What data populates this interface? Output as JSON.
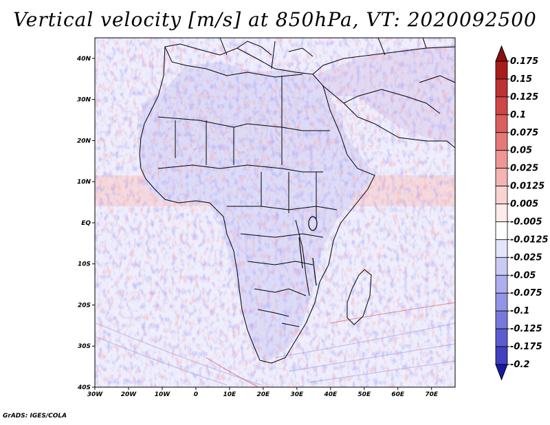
{
  "title": "Vertical velocity [m/s] at 850hPa, VT: 2020092500",
  "footer": "GrADS: IGES/COLA",
  "map": {
    "variable": "Vertical velocity",
    "units": "m/s",
    "level": "850hPa",
    "valid_time": "2020092500",
    "lon_range": [
      -30,
      77
    ],
    "lat_range": [
      -40,
      45
    ],
    "lat_ticks": [
      {
        "value": 40,
        "label": "40N"
      },
      {
        "value": 30,
        "label": "30N"
      },
      {
        "value": 20,
        "label": "20N"
      },
      {
        "value": 10,
        "label": "10N"
      },
      {
        "value": 0,
        "label": "EQ"
      },
      {
        "value": -10,
        "label": "10S"
      },
      {
        "value": -20,
        "label": "20S"
      },
      {
        "value": -30,
        "label": "30S"
      },
      {
        "value": -40,
        "label": "40S"
      }
    ],
    "lon_ticks": [
      {
        "value": -30,
        "label": "30W"
      },
      {
        "value": -20,
        "label": "20W"
      },
      {
        "value": -10,
        "label": "10W"
      },
      {
        "value": 0,
        "label": "0"
      },
      {
        "value": 10,
        "label": "10E"
      },
      {
        "value": 20,
        "label": "20E"
      },
      {
        "value": 30,
        "label": "30E"
      },
      {
        "value": 40,
        "label": "40E"
      },
      {
        "value": 50,
        "label": "50E"
      },
      {
        "value": 60,
        "label": "60E"
      },
      {
        "value": 70,
        "label": "70E"
      }
    ]
  },
  "colorbar": {
    "levels": [
      {
        "label": "0.175",
        "color": "#a81c1c"
      },
      {
        "label": "0.15",
        "color": "#bd3232"
      },
      {
        "label": "0.125",
        "color": "#cf4646"
      },
      {
        "label": "0.1",
        "color": "#db5e5e"
      },
      {
        "label": "0.075",
        "color": "#e57878"
      },
      {
        "label": "0.05",
        "color": "#ee9696"
      },
      {
        "label": "0.025",
        "color": "#f4b4b4"
      },
      {
        "label": "0.0125",
        "color": "#f9d2d2"
      },
      {
        "label": "0.005",
        "color": "#fdeaea"
      },
      {
        "label": "-0.005",
        "color": "#ffffff"
      },
      {
        "label": "-0.0125",
        "color": "#e4e4fb"
      },
      {
        "label": "-0.025",
        "color": "#cacaf5"
      },
      {
        "label": "-0.05",
        "color": "#aeaeee"
      },
      {
        "label": "-0.075",
        "color": "#9494e6"
      },
      {
        "label": "-0.1",
        "color": "#7878dc"
      },
      {
        "label": "-0.125",
        "color": "#5c5cd0"
      },
      {
        "label": "-0.175",
        "color": "#4040c0"
      },
      {
        "label": "-0.2",
        "color": "#2828b0"
      }
    ],
    "top_cap_color": "#8a1010",
    "bottom_cap_color": "#1a1aa0"
  },
  "colors": {
    "ocean_base": "#eeeefc",
    "land_base": "#dcdcf8",
    "warm_band": "#f4c8c8",
    "cool_south": "#e8e8fb",
    "borders": "#000000"
  }
}
